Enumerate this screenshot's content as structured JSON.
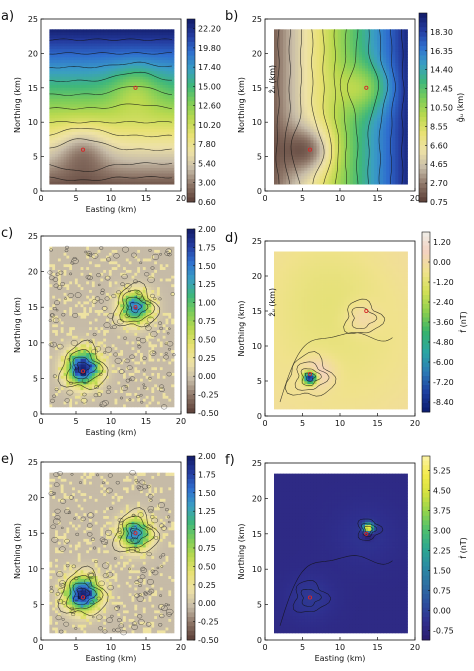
{
  "colors": {
    "earth": [
      "#5a3e36",
      "#8c7466",
      "#c7bca8",
      "#eee2a6",
      "#e8e173",
      "#bbd94f",
      "#7ccd59",
      "#3fb77b",
      "#3a9ec4",
      "#2f6fcf",
      "#243b9e",
      "#111b66"
    ],
    "earth_r": [
      "#111b66",
      "#243b9e",
      "#2f6fcf",
      "#3a9ec4",
      "#3fb77b",
      "#7ccd59",
      "#bbd94f",
      "#e8e173",
      "#eee2a6",
      "#c7bca8",
      "#8c7466",
      "#5a3e36"
    ],
    "rdylgn_like": [
      "#0b1b6e",
      "#1e3fa0",
      "#2c7bb6",
      "#2aa6a3",
      "#36b36b",
      "#8ccf4d",
      "#d2e056",
      "#f0e28c",
      "#f4d2c0",
      "#f0eee8"
    ],
    "viridis_like": [
      "#2b1d6e",
      "#2f2f8e",
      "#2c4f9e",
      "#2d6fa3",
      "#2b8ca3",
      "#2da88f",
      "#4fc06d",
      "#95d44b",
      "#d5e240",
      "#f4eb4c",
      "#fcf3a8"
    ]
  },
  "chart_data": [
    {
      "type": "heatmap",
      "label": "a)",
      "colormap": "earth",
      "xlabel": "Easting (km)",
      "ylabel": "Northing (km)",
      "colorbar_label": "",
      "xlim": [
        0,
        20
      ],
      "ylim": [
        0,
        25
      ],
      "xticks": [
        "0",
        "5",
        "10",
        "15",
        "20"
      ],
      "yticks": [
        "0",
        "5",
        "10",
        "15",
        "20",
        "25"
      ],
      "colorbar_ticks": [
        "0.60",
        "3.00",
        "5.40",
        "7.80",
        "10.20",
        "12.60",
        "15.00",
        "17.40",
        "19.80",
        "22.20"
      ],
      "clim": [
        0.6,
        23.4
      ],
      "markers": [
        {
          "x": 6,
          "y": 6
        },
        {
          "x": 13.5,
          "y": 15
        }
      ]
    },
    {
      "type": "heatmap",
      "label": "b)",
      "colormap": "earth",
      "xlabel": "",
      "ylabel": "Northing (km)",
      "colorbar_label": "ĝᵤ (km)",
      "inner_label": "ẑᵤ (km)",
      "xlim": [
        0,
        20
      ],
      "ylim": [
        0,
        25
      ],
      "xticks": [
        "0",
        "5",
        "10",
        "15",
        "20"
      ],
      "yticks": [
        "0",
        "5",
        "10",
        "15",
        "20",
        "25"
      ],
      "colorbar_ticks": [
        "0.75",
        "2.70",
        "4.65",
        "6.60",
        "8.55",
        "10.50",
        "12.45",
        "14.40",
        "16.35",
        "18.30"
      ],
      "clim": [
        0.75,
        20.25
      ],
      "markers": [
        {
          "x": 6,
          "y": 6
        },
        {
          "x": 13.5,
          "y": 15
        }
      ]
    },
    {
      "type": "heatmap",
      "label": "c)",
      "colormap": "earth",
      "xlabel": "Easting (km)",
      "ylabel": "Northing (km)",
      "colorbar_label": "",
      "xlim": [
        0,
        20
      ],
      "ylim": [
        0,
        25
      ],
      "xticks": [
        "0",
        "5",
        "10",
        "15",
        "20"
      ],
      "yticks": [
        "0",
        "5",
        "10",
        "15",
        "20",
        "25"
      ],
      "colorbar_ticks": [
        "-0.50",
        "-0.25",
        "0.00",
        "0.25",
        "0.50",
        "0.75",
        "1.00",
        "1.25",
        "1.50",
        "1.75",
        "2.00"
      ],
      "clim": [
        -0.5,
        2.0
      ],
      "markers": [
        {
          "x": 6,
          "y": 6
        },
        {
          "x": 13.5,
          "y": 15
        }
      ]
    },
    {
      "type": "heatmap",
      "label": "d)",
      "colormap": "rdylgn_like",
      "xlabel": "",
      "ylabel": "Northing (km)",
      "colorbar_label": "ḟ (nT)",
      "inner_label": "ẑᵤ (km)",
      "xlim": [
        0,
        20
      ],
      "ylim": [
        0,
        25
      ],
      "xticks": [
        "0",
        "5",
        "10",
        "15",
        "20"
      ],
      "yticks": [
        "0",
        "5",
        "10",
        "15",
        "20",
        "25"
      ],
      "colorbar_ticks": [
        "1.20",
        "0.00",
        "-1.20",
        "-2.40",
        "-3.60",
        "-4.80",
        "-6.00",
        "-7.20",
        "-8.40"
      ],
      "clim": [
        -9.0,
        1.8
      ],
      "markers": [
        {
          "x": 6,
          "y": 6
        },
        {
          "x": 13.5,
          "y": 15
        }
      ]
    },
    {
      "type": "heatmap",
      "label": "e)",
      "colormap": "earth",
      "xlabel": "Easting (km)",
      "ylabel": "Northing (km)",
      "colorbar_label": "",
      "xlim": [
        0,
        20
      ],
      "ylim": [
        0,
        25
      ],
      "xticks": [
        "0",
        "5",
        "10",
        "15",
        "20"
      ],
      "yticks": [
        "0",
        "5",
        "10",
        "15",
        "20",
        "25"
      ],
      "colorbar_ticks": [
        "-0.50",
        "-0.25",
        "0.00",
        "0.25",
        "0.50",
        "0.75",
        "1.00",
        "1.25",
        "1.50",
        "1.75",
        "2.00"
      ],
      "clim": [
        -0.5,
        2.0
      ],
      "markers": [
        {
          "x": 6,
          "y": 6
        },
        {
          "x": 13.5,
          "y": 15
        }
      ]
    },
    {
      "type": "heatmap",
      "label": "f)",
      "colormap": "viridis_like",
      "xlabel": "Easting (km)",
      "ylabel": "Northing (km)",
      "colorbar_label": "ḟ (nT)",
      "xlim": [
        0,
        20
      ],
      "ylim": [
        0,
        25
      ],
      "xticks": [
        "0",
        "5",
        "10",
        "15",
        "20"
      ],
      "yticks": [
        "0",
        "5",
        "10",
        "15",
        "20",
        "25"
      ],
      "colorbar_ticks": [
        "-0.75",
        "0.00",
        "0.75",
        "1.50",
        "2.25",
        "3.00",
        "3.75",
        "4.50",
        "5.25"
      ],
      "clim": [
        -1.1,
        5.8
      ],
      "markers": [
        {
          "x": 6,
          "y": 6
        },
        {
          "x": 13.5,
          "y": 15
        }
      ]
    }
  ]
}
